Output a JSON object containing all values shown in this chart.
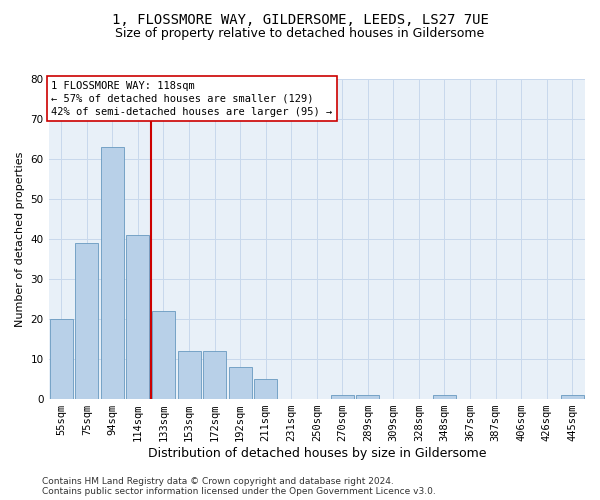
{
  "title1": "1, FLOSSMORE WAY, GILDERSOME, LEEDS, LS27 7UE",
  "title2": "Size of property relative to detached houses in Gildersome",
  "xlabel": "Distribution of detached houses by size in Gildersome",
  "ylabel": "Number of detached properties",
  "categories": [
    "55sqm",
    "75sqm",
    "94sqm",
    "114sqm",
    "133sqm",
    "153sqm",
    "172sqm",
    "192sqm",
    "211sqm",
    "231sqm",
    "250sqm",
    "270sqm",
    "289sqm",
    "309sqm",
    "328sqm",
    "348sqm",
    "367sqm",
    "387sqm",
    "406sqm",
    "426sqm",
    "445sqm"
  ],
  "values": [
    20,
    39,
    63,
    41,
    22,
    12,
    12,
    8,
    5,
    0,
    0,
    1,
    1,
    0,
    0,
    1,
    0,
    0,
    0,
    0,
    1
  ],
  "bar_color": "#b8d0e8",
  "bar_edge_color": "#6899c0",
  "vline_x": 3.5,
  "vline_color": "#cc0000",
  "ylim": [
    0,
    80
  ],
  "yticks": [
    0,
    10,
    20,
    30,
    40,
    50,
    60,
    70,
    80
  ],
  "annotation_line1": "1 FLOSSMORE WAY: 118sqm",
  "annotation_line2": "← 57% of detached houses are smaller (129)",
  "annotation_line3": "42% of semi-detached houses are larger (95) →",
  "footer1": "Contains HM Land Registry data © Crown copyright and database right 2024.",
  "footer2": "Contains public sector information licensed under the Open Government Licence v3.0.",
  "title1_fontsize": 10,
  "title2_fontsize": 9,
  "xlabel_fontsize": 9,
  "ylabel_fontsize": 8,
  "tick_fontsize": 7.5,
  "annotation_fontsize": 7.5,
  "footer_fontsize": 6.5,
  "grid_color": "#c8d8ec",
  "background_color": "#e8f0f8"
}
